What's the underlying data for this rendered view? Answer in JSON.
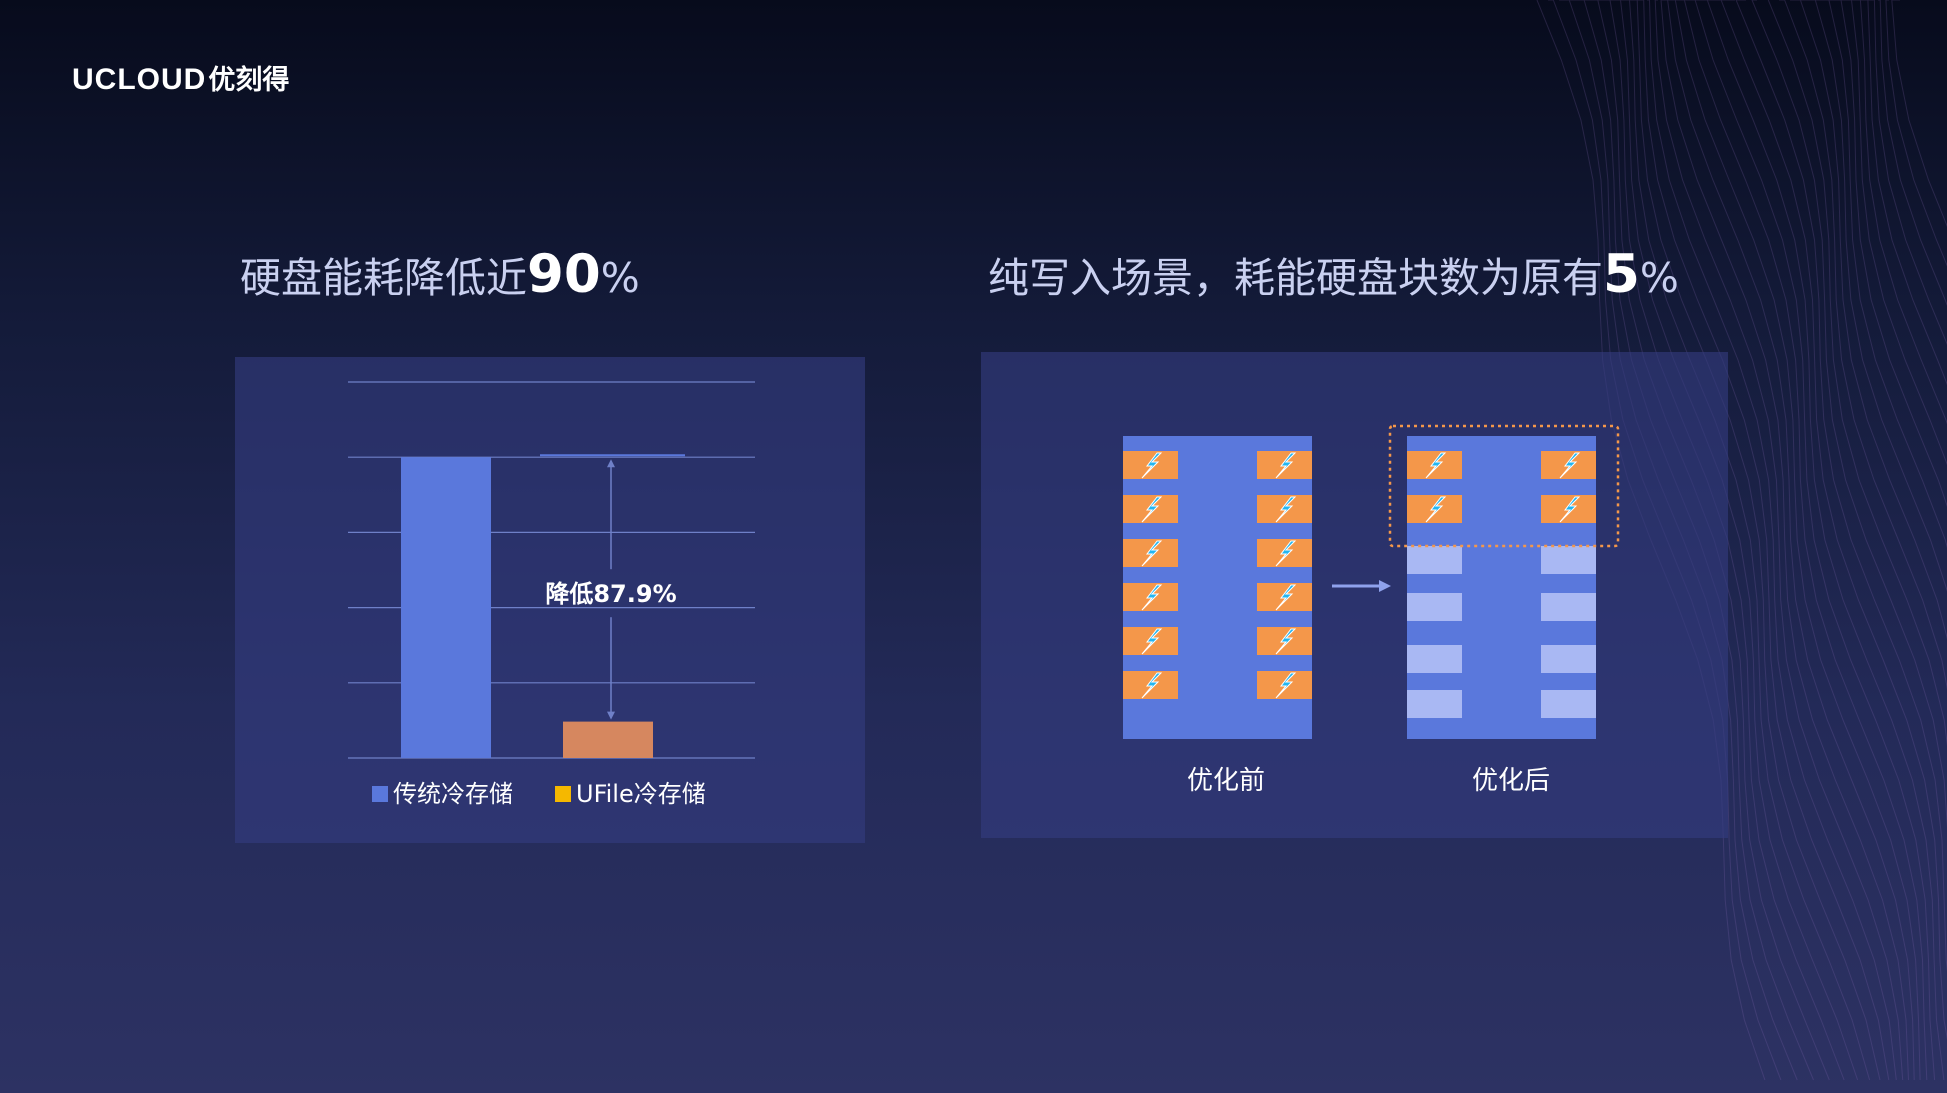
{
  "logo": {
    "brand": "UCLOUD",
    "cn": "优刻得"
  },
  "left": {
    "heading_prefix": "硬盘能耗降低近",
    "heading_num": "90",
    "heading_unit": "%"
  },
  "right": {
    "heading_prefix": "纯写入场景，耗能硬盘块数为原有",
    "heading_num": "5",
    "heading_unit": "%"
  },
  "chart_data": {
    "type": "bar",
    "categories": [
      "传统冷存储",
      "UFile冷存储"
    ],
    "series": [
      {
        "name": "传统冷存储",
        "values": [
          100,
          null
        ],
        "color": "#5a78dc"
      },
      {
        "name": "UFile冷存储",
        "values": [
          null,
          12.1
        ],
        "color": "#d6875f"
      }
    ],
    "ylim": [
      0,
      125
    ],
    "ygrid": [
      0,
      25,
      50,
      75,
      100,
      125
    ],
    "grid": true,
    "legend": "bottom",
    "legend_colors": [
      "#5a78dc",
      "#f5b800"
    ],
    "annotation": "降低87.9%"
  },
  "diagram": {
    "before_label": "优化前",
    "after_label": "优化后",
    "colors": {
      "block": "#5a78dc",
      "active": "#f4974a",
      "idle": "#a9b8f3",
      "bolt": "#23b6f0",
      "dash": "#f4974a"
    },
    "before_active_rows": 6,
    "after_active_rows": 2,
    "after_idle_rows": 4
  }
}
